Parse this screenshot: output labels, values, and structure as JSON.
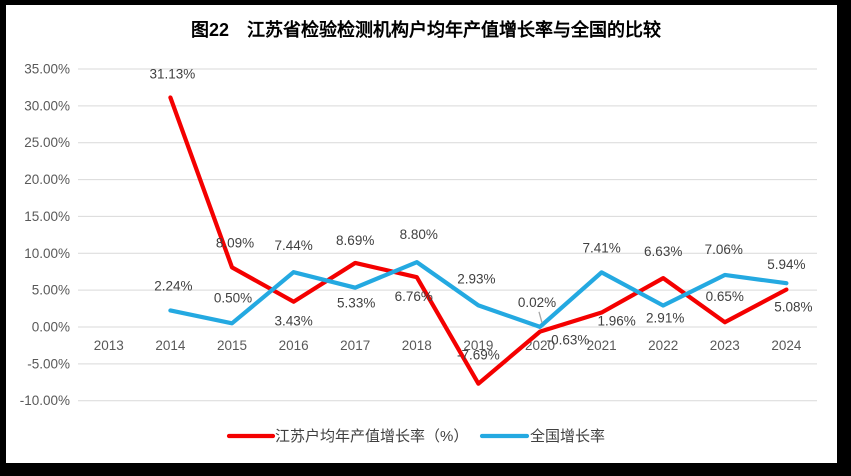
{
  "title": "图22　江苏省检验检测机构户均年产值增长率与全国的比较",
  "colors": {
    "jiangsu_line": "#f40000",
    "national_line": "#24a9e1",
    "gridline": "#d9d9d9",
    "axis_text": "#595959",
    "data_label_text": "#404040",
    "leader_line": "#a6a6a6",
    "frame": "#000000",
    "background": "#ffffff"
  },
  "legend": {
    "items": [
      {
        "label": "江苏户均年产值增长率（%）",
        "color": "#f40000"
      },
      {
        "label": "全国增长率",
        "color": "#24a9e1"
      }
    ]
  },
  "chart_data": {
    "type": "line",
    "title": "图22　江苏省检验检测机构户均年产值增长率与全国的比较",
    "categories": [
      "2013",
      "2014",
      "2015",
      "2016",
      "2017",
      "2018",
      "2019",
      "2020",
      "2021",
      "2022",
      "2023",
      "2024"
    ],
    "y_axis": {
      "min": -10,
      "max": 35,
      "step": 5,
      "tick_labels": [
        "35.00%",
        "30.00%",
        "25.00%",
        "20.00%",
        "15.00%",
        "10.00%",
        "5.00%",
        "0.00%",
        "-5.00%",
        "-10.00%"
      ]
    },
    "grid": true,
    "legend_position": "bottom",
    "series": [
      {
        "name": "江苏户均年产值增长率（%）",
        "color": "#f40000",
        "start_category_index": 1,
        "values": [
          31.13,
          8.09,
          3.43,
          8.69,
          6.76,
          -7.69,
          -0.63,
          1.96,
          6.63,
          0.65,
          5.08
        ],
        "labels": [
          "31.13%",
          "8.09%",
          "3.43%",
          "8.69%",
          "6.76%",
          "-7.69%",
          "-0.63%",
          "1.96%",
          "6.63%",
          "0.65%",
          "5.08%"
        ],
        "label_offsets": [
          [
            2,
            -19
          ],
          [
            3,
            -20
          ],
          [
            0,
            24
          ],
          [
            0,
            -18
          ],
          [
            -3,
            24
          ],
          [
            0,
            -24
          ],
          [
            28,
            13
          ],
          [
            15,
            13
          ],
          [
            0,
            -22
          ],
          [
            0,
            -21
          ],
          [
            7,
            22
          ]
        ]
      },
      {
        "name": "全国增长率",
        "color": "#24a9e1",
        "start_category_index": 1,
        "values": [
          2.24,
          0.5,
          7.44,
          5.33,
          8.8,
          2.93,
          0.02,
          7.41,
          2.91,
          7.06,
          5.94
        ],
        "labels": [
          "2.24%",
          "0.50%",
          "7.44%",
          "5.33%",
          "8.80%",
          "2.93%",
          "0.02%",
          "7.41%",
          "2.91%",
          "7.06%",
          "5.94%"
        ],
        "label_offsets": [
          [
            3,
            -20
          ],
          [
            1,
            -21
          ],
          [
            0,
            -22
          ],
          [
            1,
            20
          ],
          [
            2,
            -23
          ],
          [
            -2,
            -22
          ],
          [
            -3,
            -20
          ],
          [
            0,
            -20
          ],
          [
            2,
            17
          ],
          [
            -1,
            -21
          ],
          [
            0,
            -14
          ]
        ]
      }
    ],
    "callout": {
      "series_index": 1,
      "value_index": 6
    }
  }
}
